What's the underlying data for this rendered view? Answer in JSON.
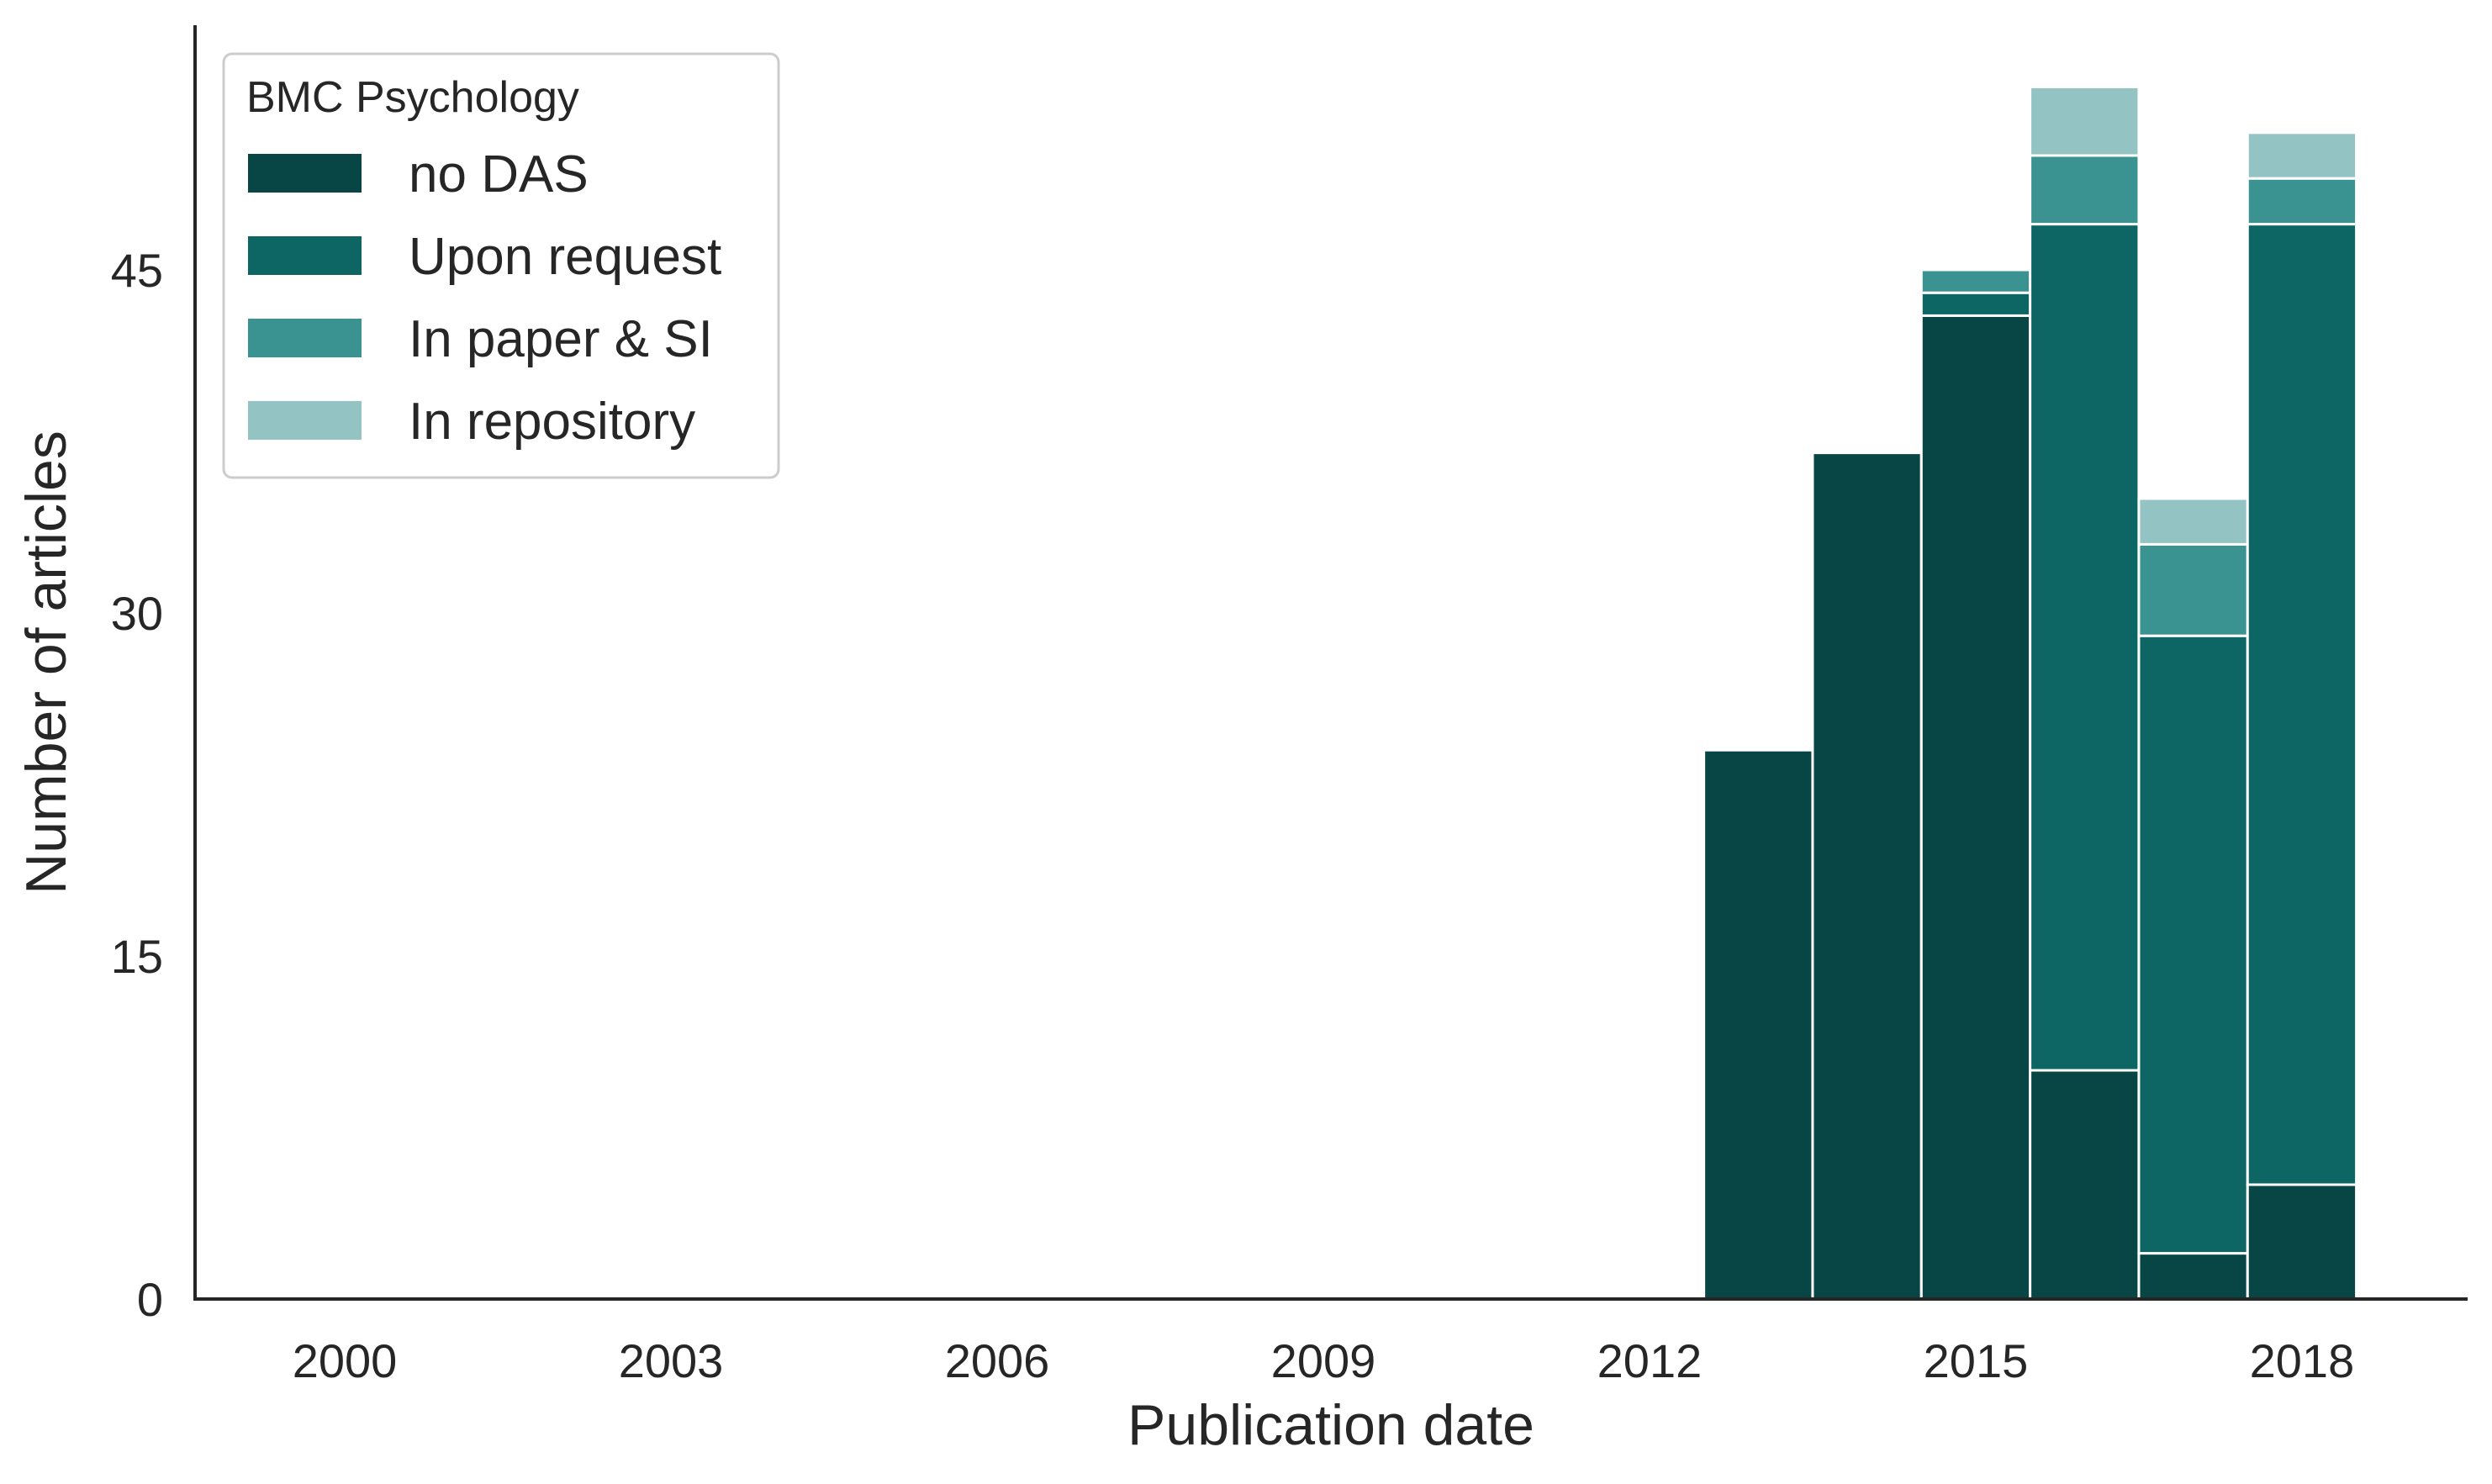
{
  "chart_data": {
    "type": "bar",
    "stacked": true,
    "xlabel": "Publication date",
    "ylabel": "Number of articles",
    "x_ticks": [
      2000,
      2003,
      2006,
      2009,
      2012,
      2015,
      2018
    ],
    "x_ticks_display": [
      "2000",
      "2003",
      "2006",
      "2009",
      "2012",
      "2015",
      "2018"
    ],
    "xlim": [
      1998.7,
      2019.5
    ],
    "y_ticks": [
      0,
      15,
      30,
      45
    ],
    "y_ticks_display": [
      "0",
      "15",
      "30",
      "45"
    ],
    "ylim": [
      0,
      56
    ],
    "grid": false,
    "legend": {
      "title": "BMC Psychology",
      "position": "top-left"
    },
    "categories": [
      2013,
      2014,
      2015,
      2016,
      2017,
      2018
    ],
    "series": [
      {
        "name": "no DAS",
        "color": "#084545",
        "values": [
          24,
          37,
          43,
          10,
          2,
          5
        ]
      },
      {
        "name": "Upon request",
        "color": "#0e6664",
        "values": [
          0,
          0,
          1,
          37,
          27,
          42
        ]
      },
      {
        "name": "In paper & SI",
        "color": "#3a9390",
        "values": [
          0,
          0,
          1,
          3,
          4,
          2
        ]
      },
      {
        "name": "In repository",
        "color": "#93c4c3",
        "values": [
          0,
          0,
          0,
          3,
          2,
          2
        ]
      }
    ]
  }
}
